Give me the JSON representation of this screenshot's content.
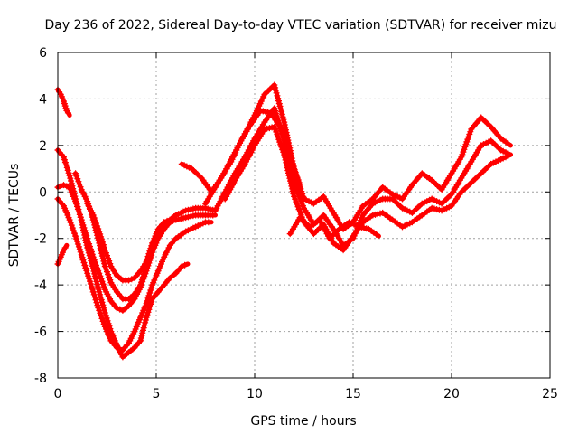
{
  "chart_data": {
    "type": "scatter",
    "title": "Day 236 of 2022, Sidereal Day-to-day VTEC variation (SDTVAR) for receiver mizu",
    "xlabel": "GPS time / hours",
    "ylabel": "SDTVAR / TECUs",
    "xlim": [
      0,
      25
    ],
    "ylim": [
      -8,
      6
    ],
    "x_ticks": [
      0,
      5,
      10,
      15,
      20,
      25
    ],
    "y_ticks": [
      -8,
      -6,
      -4,
      -2,
      0,
      2,
      4,
      6
    ],
    "grid": true,
    "legend": "none",
    "marker": "+",
    "color": "#ff0000",
    "series": [
      {
        "x": [
          0,
          0.3,
          0.6,
          0.9,
          1.2,
          1.5,
          1.8,
          2.1,
          2.4,
          2.7,
          3.0,
          3.3,
          3.6,
          3.9,
          4.2,
          4.5,
          4.8,
          5.1,
          5.4,
          5.7,
          6.0,
          6.3,
          6.6
        ],
        "y": [
          1.8,
          1.5,
          0.7,
          -0.3,
          -1.2,
          -2.4,
          -3.3,
          -4.3,
          -5.2,
          -6.0,
          -6.6,
          -7.1,
          -6.9,
          -6.7,
          -6.4,
          -5.4,
          -4.6,
          -4.3,
          -4.0,
          -3.7,
          -3.5,
          -3.2,
          -3.1
        ]
      },
      {
        "x": [
          0,
          0.3,
          0.6,
          0.9,
          1.2,
          1.5,
          1.8,
          2.1,
          2.4,
          2.7,
          3.0,
          3.3,
          3.6,
          3.9,
          4.2,
          4.5,
          4.8,
          5.1,
          5.4,
          5.7,
          6.0,
          6.5,
          7.0,
          7.5,
          7.8
        ],
        "y": [
          -0.3,
          -0.6,
          -1.2,
          -1.9,
          -2.7,
          -3.5,
          -4.3,
          -5.1,
          -5.8,
          -6.4,
          -6.7,
          -6.8,
          -6.5,
          -6.0,
          -5.4,
          -4.8,
          -4.0,
          -3.4,
          -2.8,
          -2.3,
          -2.0,
          -1.7,
          -1.5,
          -1.3,
          -1.3
        ]
      },
      {
        "x": [
          0,
          0.3,
          0.6,
          0.9,
          1.2,
          1.5,
          1.8,
          2.1,
          2.4,
          2.7,
          3.0,
          3.3,
          3.6,
          3.9,
          4.2,
          4.5,
          4.8,
          5.1,
          5.4,
          5.7,
          6.0,
          6.5,
          7.0,
          7.5,
          8.0
        ],
        "y": [
          0.2,
          0.3,
          0.2,
          -0.4,
          -1.2,
          -2.0,
          -2.8,
          -3.5,
          -4.2,
          -4.7,
          -5.0,
          -5.1,
          -4.9,
          -4.6,
          -4.1,
          -3.4,
          -2.6,
          -2.0,
          -1.6,
          -1.3,
          -1.2,
          -1.1,
          -1.0,
          -1.0,
          -1.0
        ]
      },
      {
        "x": [
          0.9,
          1.2,
          1.5,
          1.8,
          2.1,
          2.4,
          2.7,
          3.0,
          3.3,
          3.6,
          3.9,
          4.2,
          4.5,
          4.8,
          5.1,
          5.4,
          5.7,
          6.0,
          6.5,
          7.0,
          7.5,
          8.0
        ],
        "y": [
          0.8,
          0.1,
          -0.4,
          -1.2,
          -2.2,
          -3.2,
          -3.9,
          -4.3,
          -4.6,
          -4.6,
          -4.4,
          -4.0,
          -3.2,
          -2.3,
          -1.7,
          -1.4,
          -1.2,
          -1.0,
          -0.8,
          -0.7,
          -0.7,
          -0.8
        ]
      },
      {
        "x": [
          1.5,
          1.8,
          2.1,
          2.4,
          2.7,
          3.0,
          3.3,
          3.6,
          3.9,
          4.2,
          4.5,
          4.8,
          5.1,
          5.4,
          5.7,
          6.0
        ],
        "y": [
          -0.5,
          -1.0,
          -1.7,
          -2.5,
          -3.2,
          -3.6,
          -3.8,
          -3.8,
          -3.7,
          -3.4,
          -3.0,
          -2.2,
          -1.6,
          -1.3,
          -1.2,
          -1.0
        ]
      },
      {
        "x": [
          0,
          0.15,
          0.3,
          0.45,
          0.6
        ],
        "y": [
          4.4,
          4.2,
          3.9,
          3.5,
          3.3
        ]
      },
      {
        "x": [
          0,
          0.15,
          0.3,
          0.45
        ],
        "y": [
          -3.1,
          -2.8,
          -2.5,
          -2.3
        ]
      },
      {
        "x": [
          6.3,
          6.8,
          7.3,
          7.8,
          8.3,
          8.8,
          9.3,
          9.8,
          10.3,
          10.8,
          11.3,
          11.8,
          12.3
        ],
        "y": [
          1.2,
          1.0,
          0.6,
          0.0,
          0.6,
          1.3,
          2.2,
          2.9,
          3.5,
          3.4,
          2.8,
          1.5,
          0.3
        ]
      },
      {
        "x": [
          7.5,
          8.0,
          8.5,
          9.0,
          9.5,
          10.0,
          10.5,
          11.0,
          11.5,
          12.0,
          12.5,
          13.0,
          13.5,
          14.0,
          14.5,
          15.0,
          15.5,
          16.0,
          16.5,
          17.0,
          17.5,
          18.0,
          18.5,
          19.0,
          19.5,
          20.0,
          20.5,
          21.0,
          21.5,
          22.0,
          22.5,
          23.0
        ],
        "y": [
          -0.5,
          0.2,
          0.9,
          1.7,
          2.5,
          3.3,
          4.2,
          4.6,
          3.0,
          1.0,
          -0.3,
          -0.5,
          -0.2,
          -0.9,
          -1.6,
          -1.3,
          -0.6,
          -0.3,
          0.2,
          -0.1,
          -0.3,
          0.3,
          0.8,
          0.5,
          0.1,
          0.8,
          1.5,
          2.7,
          3.2,
          2.8,
          2.3,
          2.0
        ]
      },
      {
        "x": [
          8.0,
          8.5,
          9.0,
          9.5,
          10.0,
          10.5,
          11.0,
          11.5,
          12.0,
          12.5,
          13.0,
          13.5,
          14.0,
          14.5,
          15.0,
          15.5,
          16.0,
          16.5,
          17.0,
          17.5,
          18.0,
          18.5,
          19.0,
          19.5,
          20.0,
          20.5,
          21.0,
          21.5,
          22.0,
          22.5,
          23.0
        ],
        "y": [
          -0.8,
          0.0,
          0.8,
          1.5,
          2.3,
          3.0,
          3.6,
          2.2,
          0.4,
          -0.7,
          -1.4,
          -1.0,
          -1.6,
          -2.3,
          -2.0,
          -1.0,
          -0.5,
          -0.3,
          -0.3,
          -0.7,
          -0.9,
          -0.5,
          -0.3,
          -0.5,
          -0.1,
          0.6,
          1.3,
          2.0,
          2.2,
          1.8,
          1.6
        ]
      },
      {
        "x": [
          8.5,
          9.0,
          9.5,
          10.0,
          10.5,
          11.0,
          11.5,
          12.0,
          12.5,
          13.0,
          13.5,
          14.0,
          14.5,
          15.0,
          15.5,
          16.0,
          16.5,
          17.0,
          17.5,
          18.0,
          18.5,
          19.0,
          19.5,
          20.0,
          20.5,
          21.0,
          21.5,
          22.0,
          22.5,
          23.0
        ],
        "y": [
          -0.3,
          0.5,
          1.2,
          2.0,
          2.7,
          2.8,
          1.6,
          -0.2,
          -1.3,
          -1.8,
          -1.4,
          -2.2,
          -2.5,
          -1.9,
          -1.3,
          -1.0,
          -0.9,
          -1.2,
          -1.5,
          -1.3,
          -1.0,
          -0.7,
          -0.8,
          -0.6,
          0.0,
          0.4,
          0.8,
          1.2,
          1.4,
          1.6
        ]
      },
      {
        "x": [
          11.8,
          12.3,
          12.8,
          13.3,
          13.8,
          14.3,
          14.8,
          15.3,
          15.8,
          16.3
        ],
        "y": [
          -1.8,
          -1.1,
          -1.5,
          -1.2,
          -2.0,
          -1.6,
          -1.3,
          -1.5,
          -1.6,
          -1.9
        ]
      }
    ]
  }
}
